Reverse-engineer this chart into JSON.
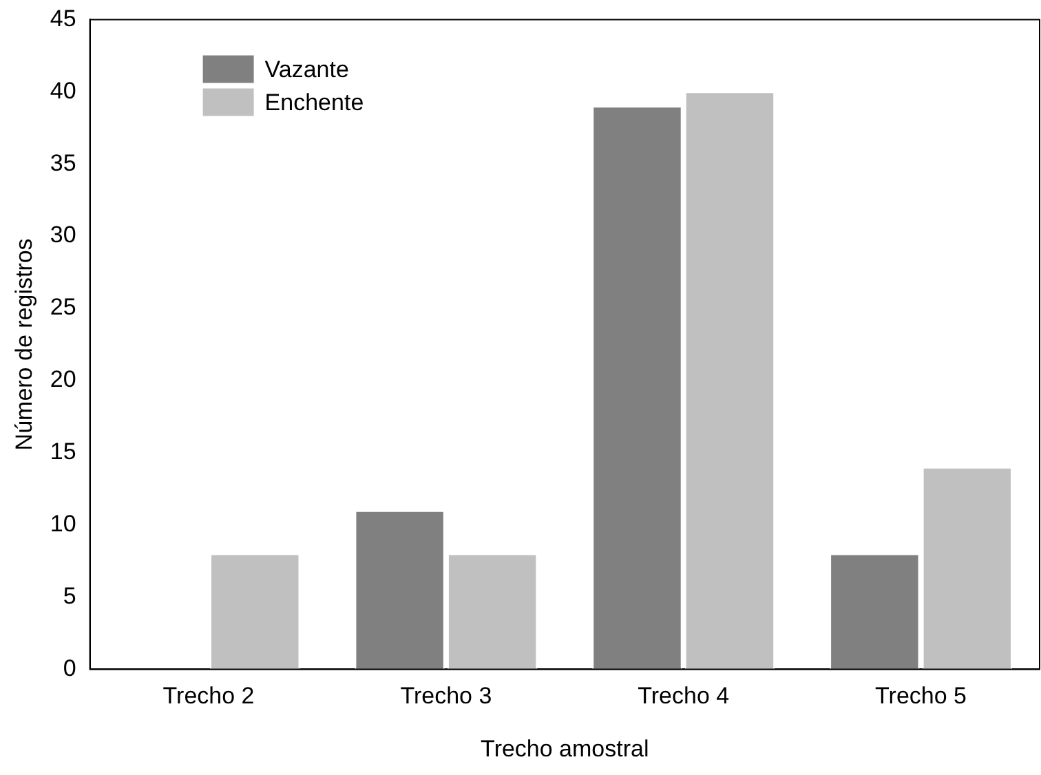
{
  "chart_data": {
    "type": "bar",
    "xlabel": "Trecho amostral",
    "ylabel": "Número de registros",
    "categories": [
      "Trecho 2",
      "Trecho 3",
      "Trecho 4",
      "Trecho 5"
    ],
    "series": [
      {
        "name": "Vazante",
        "color": "#808080",
        "values": [
          0,
          11,
          39,
          8
        ]
      },
      {
        "name": "Enchente",
        "color": "#c0c0c0",
        "values": [
          8,
          8,
          40,
          14
        ]
      }
    ],
    "ylim": [
      0,
      45
    ],
    "yticks": [
      0,
      5,
      10,
      15,
      20,
      25,
      30,
      35,
      40,
      45
    ],
    "grid": false,
    "legend": "top left"
  }
}
